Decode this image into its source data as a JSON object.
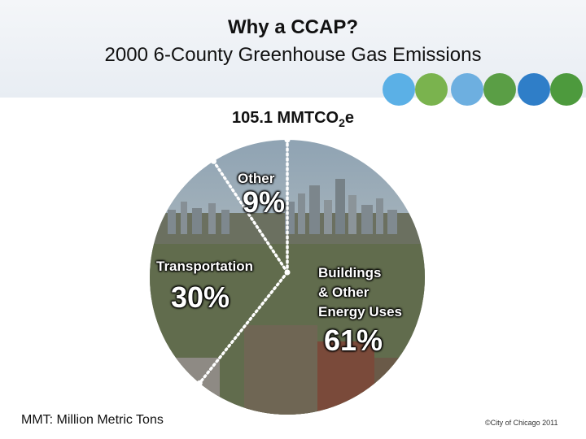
{
  "header": {
    "title": "Why a CCAP?",
    "subtitle": "2000 6-County Greenhouse Gas Emissions",
    "dot_colors": [
      "#5bb0e6",
      "#7ab34e",
      "#6dafe0",
      "#5a9e45",
      "#2f7ec8",
      "#4d9a3d"
    ]
  },
  "chart_data": {
    "type": "pie",
    "total_prefix": "105.1 MMTCO",
    "total_sub": "2",
    "total_suffix": "e",
    "slices": [
      {
        "name": "Other",
        "value": 9,
        "label": "9%"
      },
      {
        "name": "Transportation",
        "value": 30,
        "label": "30%"
      },
      {
        "name": "Buildings & Other Energy Uses",
        "value": 61,
        "label": "61%"
      }
    ],
    "buildings_lines": [
      "Buildings",
      "& Other",
      "Energy Uses"
    ]
  },
  "footer": {
    "note": "MMT: Million Metric Tons",
    "credit": "©City of Chicago 2011"
  }
}
